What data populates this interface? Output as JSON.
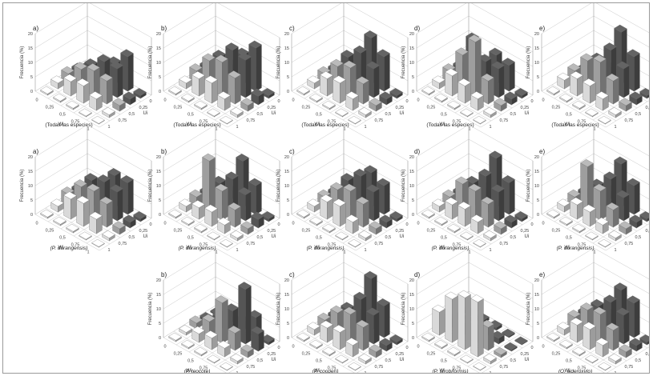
{
  "colors": {
    "light": "#d9d9d9",
    "mid": "#9e9e9e",
    "dark": "#555555"
  },
  "chart_data": [
    {
      "type": "bar",
      "label": "a)",
      "caption": "(Todas las especies)",
      "ylabel": "Frecuencia (%)",
      "xlabel": "Wi",
      "zlabel": "Ui",
      "wi": [
        "0",
        "0,25",
        "0,5",
        "0,75",
        "1"
      ],
      "ui": [
        "1",
        "0,75",
        "0,5",
        "0,25",
        "0"
      ],
      "zlim": [
        0,
        20
      ],
      "values": [
        [
          0.5,
          2,
          3,
          2,
          0.5
        ],
        [
          0.5,
          5,
          7,
          6,
          3
        ],
        [
          0.5,
          6,
          9,
          10,
          7
        ],
        [
          0.3,
          4,
          8,
          10,
          12
        ],
        [
          0.2,
          1,
          2,
          2,
          1
        ]
      ]
    },
    {
      "type": "bar",
      "label": "b)",
      "caption": "(Todas las especies)",
      "ylabel": "Frecuencia (%)",
      "xlabel": "Wi",
      "zlabel": "Ui",
      "wi": [
        "0",
        "0,25",
        "0,5",
        "0,75",
        "1"
      ],
      "ui": [
        "1",
        "0,75",
        "0,5",
        "0,25",
        "0"
      ],
      "zlim": [
        0,
        20
      ],
      "values": [
        [
          0.5,
          2,
          4,
          3,
          0.5
        ],
        [
          0.5,
          6,
          10,
          9,
          4
        ],
        [
          0.5,
          7,
          12,
          14,
          10
        ],
        [
          0.3,
          4,
          9,
          13,
          15
        ],
        [
          0.2,
          1,
          2,
          3,
          1
        ]
      ]
    },
    {
      "type": "bar",
      "label": "c)",
      "caption": "(Todas las especies)",
      "ylabel": "Frecuencia (%)",
      "xlabel": "Wi",
      "zlabel": "Ui",
      "wi": [
        "0",
        "0,25",
        "0,5",
        "0,75",
        "1"
      ],
      "ui": [
        "1",
        "0,75",
        "0,5",
        "0,25",
        "0"
      ],
      "zlim": [
        0,
        20
      ],
      "values": [
        [
          0.5,
          2,
          3,
          2,
          0.5
        ],
        [
          0.5,
          6,
          8,
          9,
          4
        ],
        [
          0.5,
          7,
          10,
          13,
          16
        ],
        [
          0.3,
          4,
          7,
          10,
          12
        ],
        [
          0.2,
          1,
          2,
          2,
          1
        ]
      ]
    },
    {
      "type": "bar",
      "label": "d)",
      "caption": "(Todas las especies)",
      "ylabel": "Frecuencia (%)",
      "xlabel": "Wi",
      "zlabel": "Ui",
      "wi": [
        "0",
        "0,25",
        "0,5",
        "0,75",
        "1"
      ],
      "ui": [
        "1",
        "0,75",
        "0,5",
        "0,25",
        "0"
      ],
      "zlim": [
        0,
        20
      ],
      "values": [
        [
          0.5,
          2,
          4,
          3,
          0.5
        ],
        [
          0.5,
          7,
          12,
          15,
          5
        ],
        [
          0.5,
          6,
          19,
          10,
          10
        ],
        [
          0.3,
          4,
          8,
          10,
          9
        ],
        [
          0.2,
          1,
          2,
          2,
          1
        ]
      ]
    },
    {
      "type": "bar",
      "label": "e)",
      "caption": "(Todas las especies)",
      "ylabel": "Frecuencia (%)",
      "xlabel": "Wi",
      "zlabel": "Ui",
      "wi": [
        "0",
        "0,25",
        "0,5",
        "0,75",
        "1"
      ],
      "ui": [
        "1",
        "0,75",
        "0,5",
        "0,25",
        "0"
      ],
      "zlim": [
        0,
        20
      ],
      "values": [
        [
          0.5,
          3,
          4,
          2,
          0.5
        ],
        [
          0.5,
          6,
          10,
          8,
          3
        ],
        [
          0.5,
          6,
          12,
          14,
          18
        ],
        [
          0.3,
          4,
          8,
          10,
          12
        ],
        [
          0.2,
          1,
          2,
          2,
          1
        ]
      ]
    },
    {
      "type": "bar",
      "label": "a)",
      "caption": "(P. durangensis)",
      "ylabel": "Frecuencia (%)",
      "xlabel": "Wi",
      "zlabel": "Ui",
      "wi": [
        "0",
        "0,25",
        "0,5",
        "0,75",
        "1"
      ],
      "ui": [
        "1",
        "0,75",
        "0,5",
        "0,25",
        "0"
      ],
      "zlim": [
        0,
        20
      ],
      "values": [
        [
          0.5,
          2,
          4,
          3,
          0.5
        ],
        [
          0.5,
          7,
          9,
          9,
          4
        ],
        [
          0.5,
          8,
          10,
          11,
          11
        ],
        [
          0.3,
          5,
          8,
          10,
          11
        ],
        [
          0.2,
          1,
          2,
          2,
          1
        ]
      ]
    },
    {
      "type": "bar",
      "label": "b)",
      "caption": "(P. durangensis)",
      "ylabel": "Frecuencia (%)",
      "xlabel": "Wi",
      "zlabel": "Ui",
      "wi": [
        "0",
        "0,25",
        "0,5",
        "0,75",
        "1"
      ],
      "ui": [
        "1",
        "0,75",
        "0,5",
        "0,25",
        "0"
      ],
      "zlim": [
        0,
        20
      ],
      "values": [
        [
          0.5,
          2,
          3,
          2,
          0.5
        ],
        [
          0.5,
          4,
          18,
          8,
          3
        ],
        [
          0.5,
          5,
          10,
          12,
          16
        ],
        [
          0.3,
          3,
          6,
          9,
          10
        ],
        [
          0.2,
          1,
          2,
          3,
          1
        ]
      ]
    },
    {
      "type": "bar",
      "label": "c)",
      "caption": "(P. durangensis)",
      "ylabel": "Frecuencia (%)",
      "xlabel": "Wi",
      "zlabel": "Ui",
      "wi": [
        "0",
        "0,25",
        "0,5",
        "0,75",
        "1"
      ],
      "ui": [
        "1",
        "0,75",
        "0,5",
        "0,25",
        "0"
      ],
      "zlim": [
        0,
        20
      ],
      "values": [
        [
          0.5,
          2,
          3,
          2,
          0.5
        ],
        [
          0.5,
          6,
          8,
          9,
          5
        ],
        [
          0.5,
          7,
          10,
          13,
          12
        ],
        [
          0.3,
          4,
          8,
          10,
          10
        ],
        [
          0.2,
          1,
          2,
          2,
          1
        ]
      ]
    },
    {
      "type": "bar",
      "label": "d)",
      "caption": "(P. durangensis)",
      "ylabel": "Frecuencia (%)",
      "xlabel": "Wi",
      "zlabel": "Ui",
      "wi": [
        "0",
        "0,25",
        "0,5",
        "0,75",
        "1"
      ],
      "ui": [
        "1",
        "0,75",
        "0,5",
        "0,25",
        "0"
      ],
      "zlim": [
        0,
        20
      ],
      "values": [
        [
          0.5,
          2,
          3,
          2,
          0.5
        ],
        [
          0.5,
          5,
          10,
          8,
          4
        ],
        [
          0.5,
          6,
          10,
          13,
          17
        ],
        [
          0.3,
          4,
          8,
          10,
          11
        ],
        [
          0.2,
          1,
          2,
          2,
          1
        ]
      ]
    },
    {
      "type": "bar",
      "label": "e)",
      "caption": "(P. durangensis)",
      "ylabel": "Frecuencia (%)",
      "xlabel": "Wi",
      "zlabel": "Ui",
      "wi": [
        "0",
        "0,25",
        "0,5",
        "0,75",
        "1"
      ],
      "ui": [
        "1",
        "0,75",
        "0,5",
        "0,25",
        "0"
      ],
      "zlim": [
        0,
        20
      ],
      "values": [
        [
          0.5,
          2,
          3,
          2,
          0.5
        ],
        [
          0.5,
          5,
          16,
          7,
          3
        ],
        [
          0.5,
          5,
          10,
          12,
          15
        ],
        [
          0.3,
          3,
          6,
          8,
          10
        ],
        [
          0.2,
          1,
          2,
          2,
          1
        ]
      ]
    },
    {
      "type": "bar",
      "label": "b)",
      "caption": "(P. teocote)",
      "ylabel": "Frecuencia (%)",
      "xlabel": "Wi",
      "zlabel": "Ui",
      "wi": [
        "0",
        "0,25",
        "0,5",
        "0,75",
        "1"
      ],
      "ui": [
        "1",
        "0,75",
        "0,5",
        "0,25",
        "0"
      ],
      "zlim": [
        0,
        20
      ],
      "values": [
        [
          0.5,
          1,
          2,
          1,
          0.5
        ],
        [
          0.5,
          3,
          5,
          4,
          2
        ],
        [
          0.5,
          4,
          14,
          9,
          3
        ],
        [
          0.3,
          3,
          6,
          19,
          7
        ],
        [
          0.2,
          1,
          2,
          6,
          1
        ]
      ]
    },
    {
      "type": "bar",
      "label": "c)",
      "caption": "(P. cooperi)",
      "ylabel": "Frecuencia (%)",
      "xlabel": "Wi",
      "zlabel": "Ui",
      "wi": [
        "0",
        "0,25",
        "0,5",
        "0,75",
        "1"
      ],
      "ui": [
        "1",
        "0,75",
        "0,5",
        "0,25",
        "0"
      ],
      "zlim": [
        0,
        20
      ],
      "values": [
        [
          0.5,
          2,
          3,
          2,
          0.5
        ],
        [
          0.5,
          5,
          8,
          7,
          3
        ],
        [
          0.5,
          6,
          10,
          13,
          18
        ],
        [
          0.3,
          4,
          8,
          10,
          11
        ],
        [
          0.2,
          1,
          2,
          2,
          1
        ]
      ]
    },
    {
      "type": "bar",
      "label": "d)",
      "caption": "(P. strobiformis)",
      "ylabel": "Frecuencia (%)",
      "xlabel": "Wi",
      "zlabel": "Ui",
      "wi": [
        "0",
        "0,25",
        "0,5",
        "0,75",
        "1"
      ],
      "ui": [
        "1",
        "0,75",
        "0,5",
        "0,25",
        "0"
      ],
      "zlim": [
        0,
        20
      ],
      "values": [
        [
          0.5,
          8,
          3,
          1,
          0.5
        ],
        [
          0.5,
          15,
          4,
          2,
          1
        ],
        [
          0.5,
          18,
          6,
          3,
          1
        ],
        [
          0.3,
          19,
          8,
          2,
          0.5
        ],
        [
          0.2,
          1,
          1,
          0.5,
          0.3
        ]
      ]
    },
    {
      "type": "bar",
      "label": "e)",
      "caption": "(Q. sideroxylo)",
      "ylabel": "Frecuencia (%)",
      "xlabel": "Wi",
      "zlabel": "Ui",
      "wi": [
        "0",
        "0,25",
        "0,5",
        "0,75",
        "1"
      ],
      "ui": [
        "1",
        "0,75",
        "0,5",
        "0,25",
        "0"
      ],
      "zlim": [
        0,
        20
      ],
      "values": [
        [
          0.5,
          2,
          4,
          3,
          0.5
        ],
        [
          0.5,
          6,
          9,
          8,
          3
        ],
        [
          0.5,
          7,
          10,
          12,
          14
        ],
        [
          0.3,
          4,
          7,
          10,
          12
        ],
        [
          0.2,
          1,
          2,
          2,
          1
        ]
      ]
    }
  ]
}
